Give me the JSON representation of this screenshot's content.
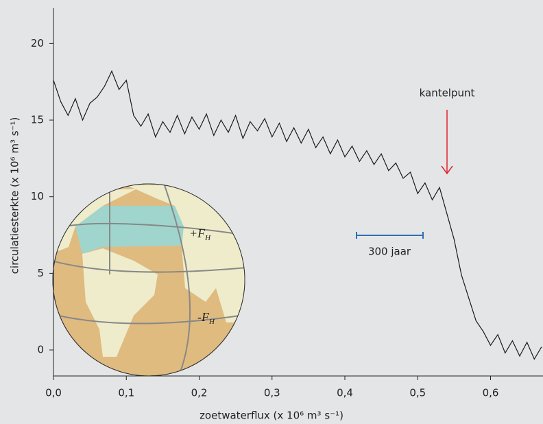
{
  "chart_data": {
    "type": "line",
    "x_label": "zoetwaterflux (x 10⁶ m³ s⁻¹)",
    "y_label": "circulatiesterkte (x 10⁶ m³ s⁻¹)",
    "x": [
      0,
      0.01,
      0.02,
      0.03,
      0.04,
      0.05,
      0.06,
      0.07,
      0.08,
      0.09,
      0.1,
      0.11,
      0.12,
      0.13,
      0.14,
      0.15,
      0.16,
      0.17,
      0.18,
      0.19,
      0.2,
      0.21,
      0.22,
      0.23,
      0.24,
      0.25,
      0.26,
      0.27,
      0.28,
      0.29,
      0.3,
      0.31,
      0.32,
      0.33,
      0.34,
      0.35,
      0.36,
      0.37,
      0.38,
      0.39,
      0.4,
      0.41,
      0.42,
      0.43,
      0.44,
      0.45,
      0.46,
      0.47,
      0.48,
      0.49,
      0.5,
      0.51,
      0.52,
      0.53,
      0.54,
      0.55,
      0.56,
      0.57,
      0.58,
      0.59,
      0.6,
      0.61,
      0.62,
      0.63,
      0.64,
      0.65,
      0.66,
      0.67
    ],
    "values": [
      17.6,
      16.2,
      15.3,
      16.4,
      15.0,
      16.1,
      16.5,
      17.2,
      18.2,
      17.0,
      17.6,
      15.3,
      14.6,
      15.4,
      13.9,
      14.9,
      14.2,
      15.3,
      14.1,
      15.2,
      14.4,
      15.4,
      14.0,
      15.0,
      14.2,
      15.3,
      13.8,
      14.9,
      14.3,
      15.1,
      13.9,
      14.8,
      13.6,
      14.5,
      13.5,
      14.4,
      13.2,
      13.9,
      12.8,
      13.7,
      12.6,
      13.3,
      12.3,
      13.0,
      12.1,
      12.8,
      11.7,
      12.2,
      11.2,
      11.6,
      10.2,
      10.9,
      9.8,
      10.6,
      8.9,
      7.2,
      4.9,
      3.4,
      1.9,
      1.2,
      0.3,
      1.0,
      -0.2,
      0.6,
      -0.4,
      0.5,
      -0.6,
      0.2
    ],
    "color": "#1a1a1a",
    "xlim": [
      0,
      0.672
    ],
    "ylim": [
      -1.7,
      22.3
    ],
    "xticks": [
      {
        "value": 0,
        "label": "0,0"
      },
      {
        "value": 0.1,
        "label": "0,1"
      },
      {
        "value": 0.2,
        "label": "0,2"
      },
      {
        "value": 0.3,
        "label": "0,3"
      },
      {
        "value": 0.4,
        "label": "0,4"
      },
      {
        "value": 0.5,
        "label": "0,5"
      },
      {
        "value": 0.6,
        "label": "0,6"
      }
    ],
    "yticks": [
      0,
      5,
      10,
      15,
      20
    ],
    "annotations": [
      {
        "text": "kantelpunt"
      },
      {
        "text": "300 jaar"
      },
      {
        "text": "+F",
        "subscript": "H"
      },
      {
        "text": "-F",
        "subscript": "H"
      }
    ]
  }
}
